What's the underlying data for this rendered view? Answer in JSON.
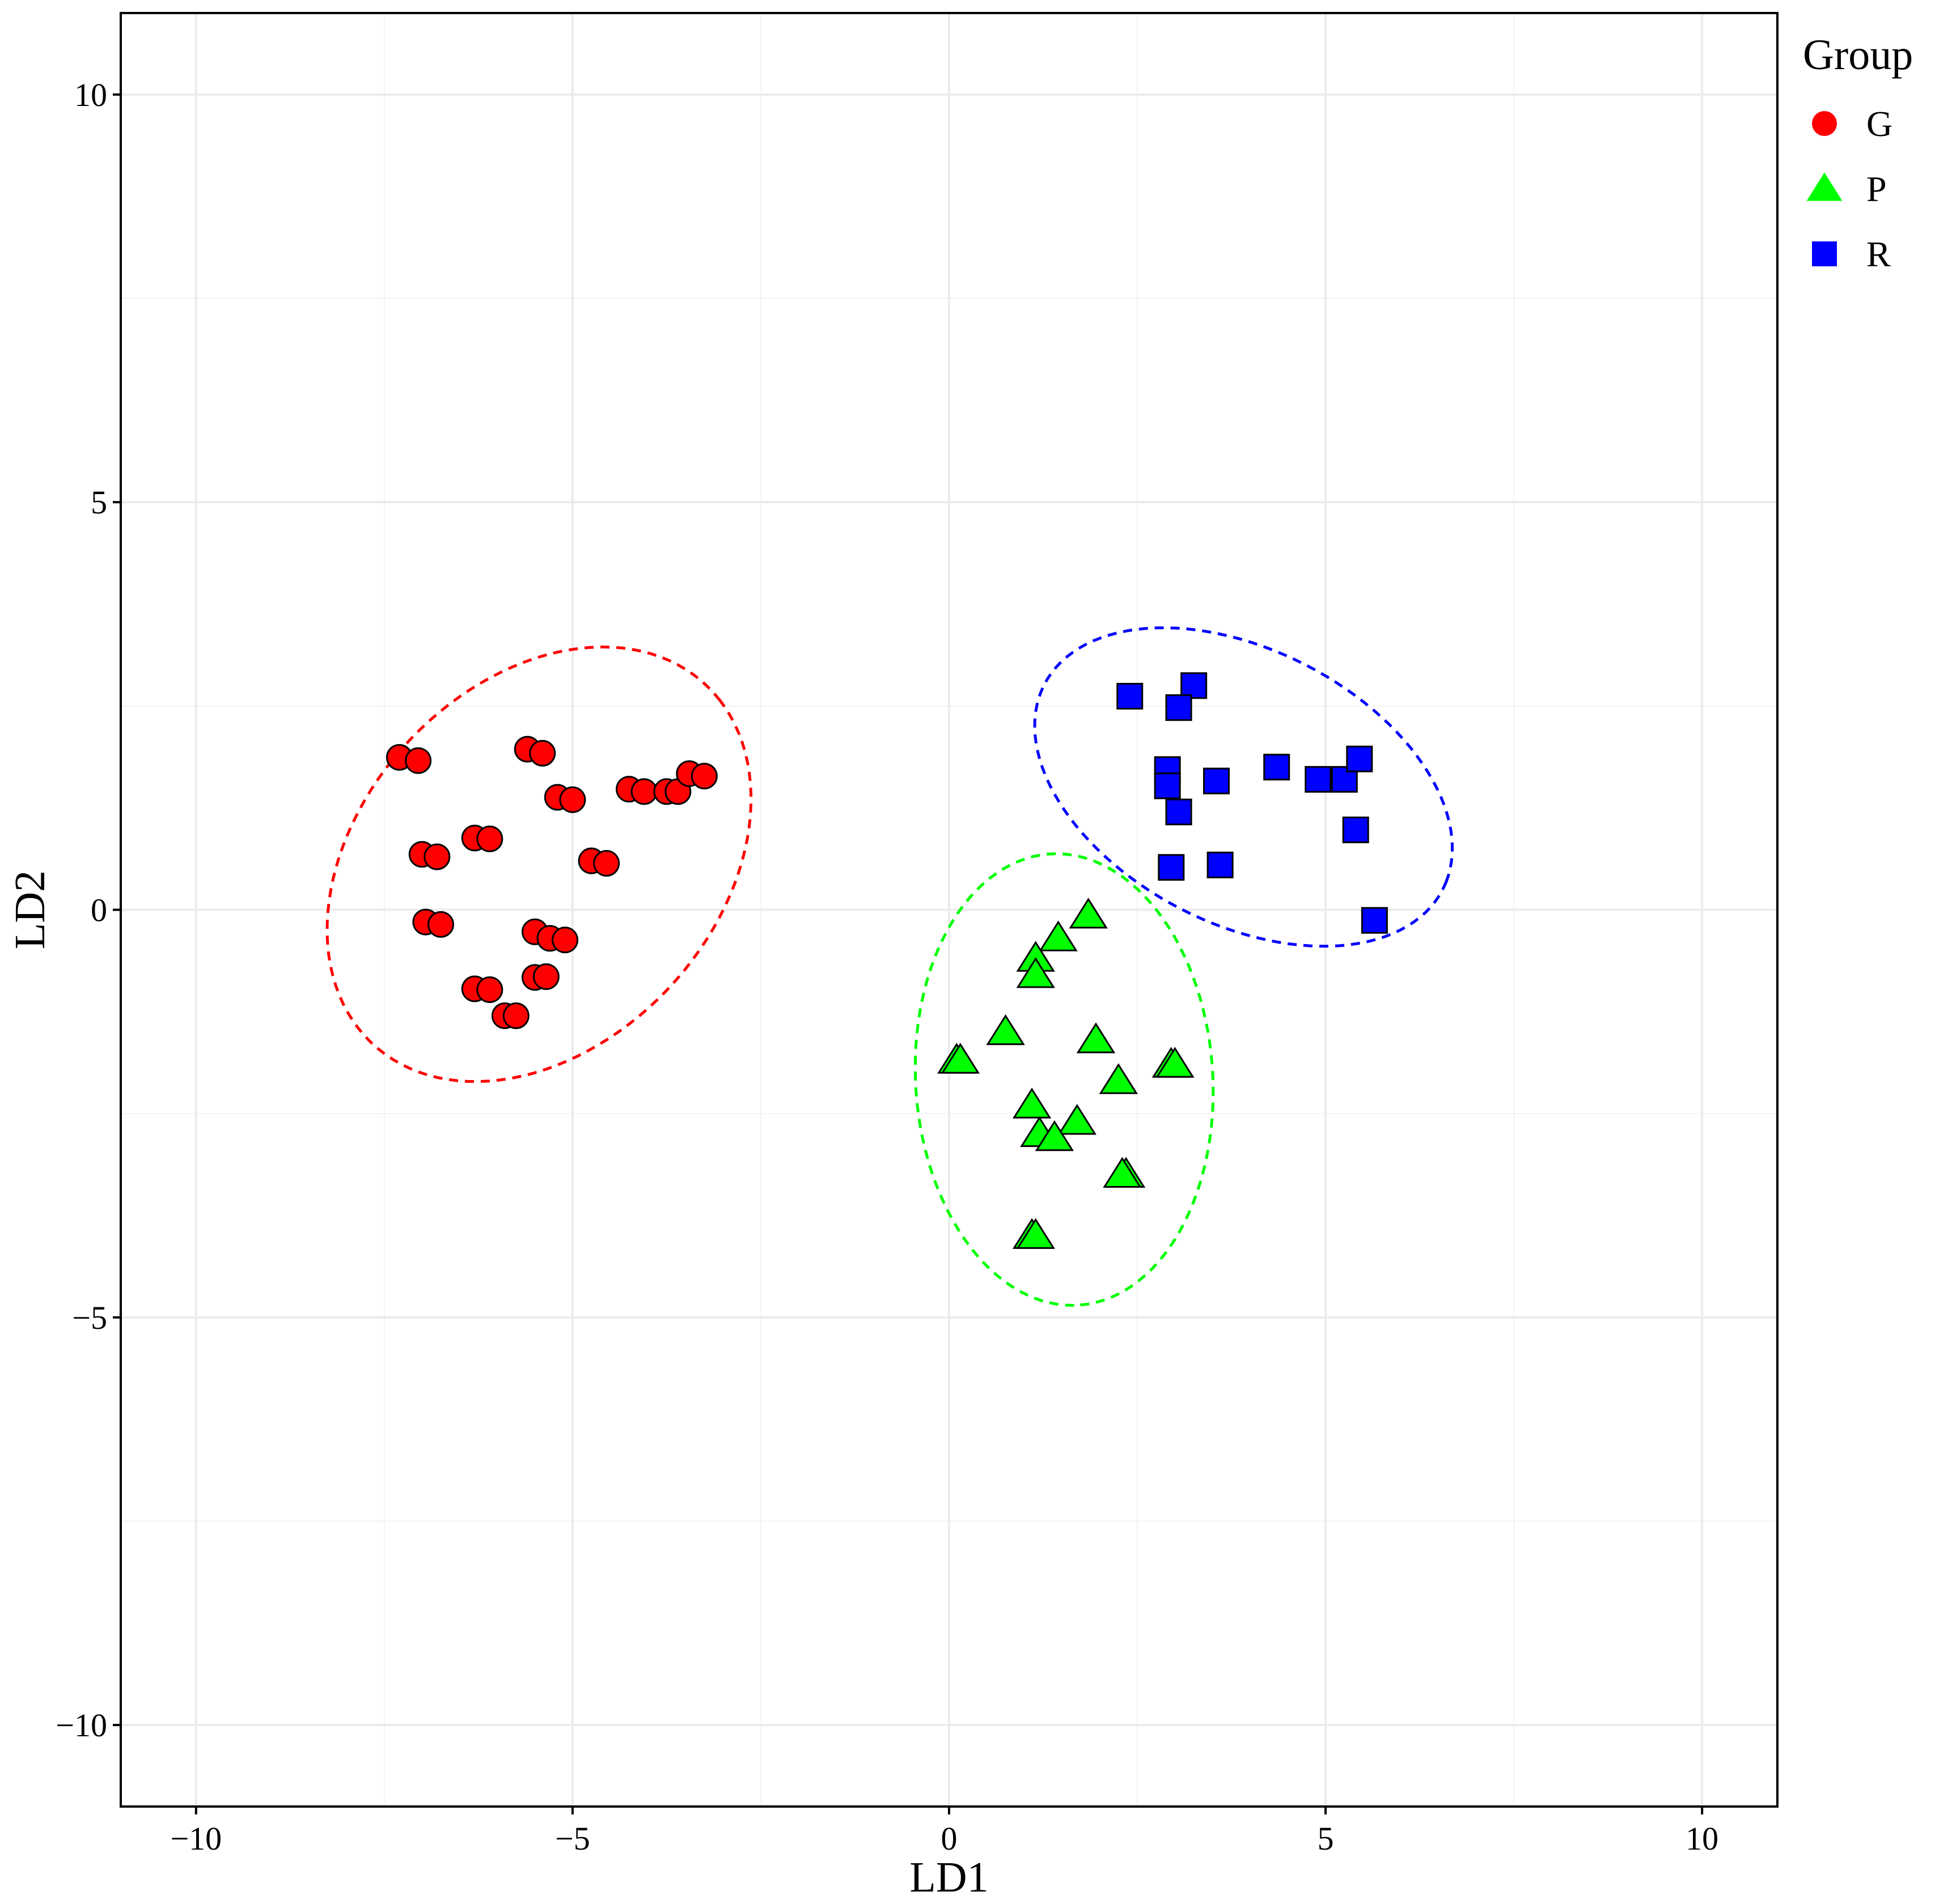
{
  "chart_data": {
    "type": "scatter",
    "xlabel": "LD1",
    "ylabel": "LD2",
    "xlim": [
      -11,
      11
    ],
    "ylim": [
      -11,
      11
    ],
    "x_ticks": [
      -10,
      -5,
      0,
      5,
      10
    ],
    "y_ticks": [
      -10,
      -5,
      0,
      5,
      10
    ],
    "x_tick_labels": [
      "−10",
      "−5",
      "0",
      "5",
      "10"
    ],
    "y_tick_labels": [
      "−10",
      "−5",
      "0",
      "5",
      "10"
    ],
    "grid": true,
    "legend": {
      "title": "Group",
      "position": "right-top",
      "entries": [
        "G",
        "P",
        "R"
      ]
    },
    "series": [
      {
        "name": "G",
        "marker": "circle",
        "color": "#ff0000",
        "ellipse": {
          "style": "dashed"
        },
        "points": [
          [
            -7.3,
            1.87
          ],
          [
            -7.05,
            1.83
          ],
          [
            -5.6,
            1.97
          ],
          [
            -5.4,
            1.92
          ],
          [
            -5.2,
            1.38
          ],
          [
            -5.0,
            1.35
          ],
          [
            -4.25,
            1.48
          ],
          [
            -4.05,
            1.45
          ],
          [
            -3.75,
            1.45
          ],
          [
            -3.6,
            1.45
          ],
          [
            -3.45,
            1.67
          ],
          [
            -3.25,
            1.64
          ],
          [
            -7.0,
            0.68
          ],
          [
            -6.8,
            0.65
          ],
          [
            -6.3,
            0.88
          ],
          [
            -6.1,
            0.87
          ],
          [
            -4.75,
            0.6
          ],
          [
            -4.55,
            0.57
          ],
          [
            -6.95,
            -0.15
          ],
          [
            -6.75,
            -0.18
          ],
          [
            -5.5,
            -0.27
          ],
          [
            -5.3,
            -0.35
          ],
          [
            -5.1,
            -0.37
          ],
          [
            -5.5,
            -0.83
          ],
          [
            -5.35,
            -0.82
          ],
          [
            -6.3,
            -0.97
          ],
          [
            -6.1,
            -0.98
          ],
          [
            -5.9,
            -1.3
          ],
          [
            -5.75,
            -1.3
          ]
        ]
      },
      {
        "name": "P",
        "marker": "triangle",
        "color": "#00ff00",
        "ellipse": {
          "style": "dashed"
        },
        "points": [
          [
            1.85,
            -0.07
          ],
          [
            1.45,
            -0.35
          ],
          [
            1.15,
            -0.6
          ],
          [
            1.15,
            -0.8
          ],
          [
            0.75,
            -1.5
          ],
          [
            1.95,
            -1.6
          ],
          [
            0.1,
            -1.85
          ],
          [
            0.15,
            -1.85
          ],
          [
            2.25,
            -2.1
          ],
          [
            2.95,
            -1.9
          ],
          [
            3.0,
            -1.9
          ],
          [
            1.1,
            -2.4
          ],
          [
            1.7,
            -2.6
          ],
          [
            1.2,
            -2.75
          ],
          [
            1.4,
            -2.8
          ],
          [
            2.35,
            -3.25
          ],
          [
            2.3,
            -3.25
          ],
          [
            1.1,
            -4.0
          ],
          [
            1.15,
            -4.0
          ]
        ]
      },
      {
        "name": "R",
        "marker": "square",
        "color": "#0000ff",
        "ellipse": {
          "style": "dashed"
        },
        "points": [
          [
            2.4,
            2.62
          ],
          [
            3.25,
            2.75
          ],
          [
            3.05,
            2.48
          ],
          [
            2.9,
            1.72
          ],
          [
            2.9,
            1.52
          ],
          [
            3.55,
            1.58
          ],
          [
            3.05,
            1.2
          ],
          [
            2.95,
            0.52
          ],
          [
            3.6,
            0.55
          ],
          [
            4.35,
            1.75
          ],
          [
            4.9,
            1.6
          ],
          [
            5.25,
            1.6
          ],
          [
            5.45,
            1.85
          ],
          [
            5.4,
            0.98
          ],
          [
            5.65,
            -0.13
          ]
        ]
      }
    ]
  }
}
